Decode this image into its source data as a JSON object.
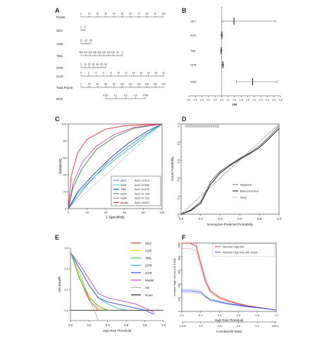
{
  "panel_labels": [
    "A",
    "B",
    "C",
    "D",
    "E",
    "F"
  ],
  "chart_data": [
    {
      "panel": "A",
      "type": "table",
      "rows": [
        {
          "label": "Points",
          "ticks": [
            "0",
            "10",
            "20",
            "30",
            "40",
            "50",
            "60",
            "70",
            "80",
            "90",
            "100"
          ]
        },
        {
          "label": "SEX",
          "ticks": [
            "1",
            "0"
          ]
        },
        {
          "label": "AGE",
          "ticks": [
            "15",
            "30",
            "60"
          ]
        },
        {
          "label": "TBIL",
          "ticks": [
            "450",
            "400",
            "350",
            "300",
            "250",
            "200",
            "150",
            "100",
            "50",
            "0"
          ]
        },
        {
          "label": "GPR",
          "ticks": [
            "0",
            "10",
            "20",
            "30",
            "40",
            "50",
            "60"
          ]
        },
        {
          "label": "GAR",
          "ticks": [
            "0",
            "2",
            "4",
            "6",
            "8",
            "10",
            "12",
            "14",
            "16",
            "18",
            "20",
            "22"
          ]
        },
        {
          "label": "Total Points",
          "ticks": [
            "0",
            "20",
            "40",
            "60",
            "80",
            "100",
            "120",
            "140",
            "160",
            "180",
            "200"
          ]
        },
        {
          "label": "Risk",
          "ticks": [
            "0.001",
            "0.1",
            "0.5",
            "0.9",
            "0.999"
          ]
        }
      ]
    },
    {
      "panel": "B",
      "type": "scatter",
      "xlabel": "OR",
      "xlim": [
        0,
        2.8
      ],
      "xticks": [
        "0.0",
        "0.2",
        "0.4",
        "0.6",
        "0.8",
        "1.0",
        "1.2",
        "1.4",
        "1.6",
        "1.8",
        "2.0",
        "2.2",
        "2.4",
        "2.6",
        "2.8"
      ],
      "rows": [
        {
          "label": "SEX",
          "or": 1.38,
          "lo": 1.02,
          "hi": 2.65
        },
        {
          "label": "AGE",
          "or": 1.01,
          "lo": 0.98,
          "hi": 1.03
        },
        {
          "label": "TBIL",
          "or": 0.99,
          "lo": 0.97,
          "hi": 1.01
        },
        {
          "label": "GPR",
          "or": 1.04,
          "lo": 1.01,
          "hi": 1.07
        },
        {
          "label": "GAR",
          "or": 1.95,
          "lo": 1.45,
          "hi": 2.7
        }
      ]
    },
    {
      "panel": "C",
      "type": "line",
      "xlabel": "1-Specificity",
      "ylabel": "Sensitivity",
      "xlim": [
        0,
        100
      ],
      "ylim": [
        0,
        100
      ],
      "xticks": [
        "0",
        "20",
        "40",
        "60",
        "80",
        "100"
      ],
      "yticks": [
        "0",
        "20",
        "40",
        "60",
        "80",
        "100"
      ],
      "series": [
        {
          "name": "SEX",
          "auc": "AUC=0.572",
          "color": "#5a7fd6",
          "x": [
            0,
            20,
            40,
            60,
            80,
            100
          ],
          "y": [
            0,
            28,
            52,
            70,
            86,
            100
          ]
        },
        {
          "name": "AGE",
          "auc": "AUC=0.596",
          "color": "#2bc4d6",
          "x": [
            0,
            10,
            30,
            50,
            70,
            85,
            100
          ],
          "y": [
            0,
            18,
            40,
            58,
            75,
            88,
            100
          ]
        },
        {
          "name": "TBIL",
          "auc": "AUC=0.575",
          "color": "#1a3fb5",
          "x": [
            0,
            10,
            25,
            45,
            65,
            85,
            100
          ],
          "y": [
            0,
            20,
            38,
            60,
            78,
            92,
            100
          ]
        },
        {
          "name": "GPR",
          "auc": "AUC=0.735",
          "color": "#2e8b3a",
          "x": [
            0,
            5,
            15,
            30,
            50,
            70,
            100
          ],
          "y": [
            0,
            25,
            48,
            70,
            85,
            95,
            100
          ]
        },
        {
          "name": "GAR",
          "auc": "AUC=0.753",
          "color": "#e040b8",
          "x": [
            0,
            5,
            15,
            30,
            50,
            70,
            100
          ],
          "y": [
            0,
            30,
            55,
            74,
            88,
            96,
            100
          ]
        },
        {
          "name": "Model",
          "auc": "AUC=0.837",
          "color": "#e53030",
          "x": [
            0,
            3,
            10,
            20,
            40,
            60,
            100
          ],
          "y": [
            0,
            38,
            66,
            82,
            94,
            98,
            100
          ]
        }
      ]
    },
    {
      "panel": "D",
      "type": "line",
      "xlabel": "Nomogram-Predicted Probability",
      "ylabel": "Actual Probability",
      "xlim": [
        0,
        1.0
      ],
      "ylim": [
        0,
        1.0
      ],
      "xticks": [
        "0.0",
        "0.2",
        "0.4",
        "0.6",
        "0.8",
        "1.0"
      ],
      "yticks": [
        "0.0",
        "0.2",
        "0.4",
        "0.6",
        "0.8",
        "1.0"
      ],
      "legend": [
        "Apparent",
        "Bias-corrected",
        "Ideal"
      ],
      "series": [
        {
          "name": "Apparent",
          "x": [
            0.0,
            0.1,
            0.2,
            0.3,
            0.4,
            0.5,
            0.6,
            0.7,
            0.8,
            0.9,
            1.0
          ],
          "y": [
            0.0,
            0.05,
            0.14,
            0.36,
            0.48,
            0.55,
            0.62,
            0.68,
            0.76,
            0.86,
            0.98
          ]
        },
        {
          "name": "Bias-corrected",
          "x": [
            0.0,
            0.1,
            0.2,
            0.3,
            0.4,
            0.5,
            0.6,
            0.7,
            0.8,
            0.9,
            1.0
          ],
          "y": [
            0.0,
            0.04,
            0.12,
            0.33,
            0.46,
            0.54,
            0.61,
            0.67,
            0.74,
            0.84,
            0.95
          ]
        },
        {
          "name": "Ideal",
          "x": [
            0.0,
            1.0
          ],
          "y": [
            0.0,
            1.0
          ]
        }
      ]
    },
    {
      "panel": "E",
      "type": "line",
      "xlabel": "High Risk Threshold",
      "ylabel": "Net Benefit",
      "xlim": [
        0,
        1.0
      ],
      "ylim": [
        -0.05,
        0.3
      ],
      "xticks": [
        "0.0",
        "0.2",
        "0.4",
        "0.6",
        "0.8",
        "1.0"
      ],
      "yticks": [
        "0.0",
        "0.1",
        "0.2",
        "0.3"
      ],
      "series": [
        {
          "name": "SEX",
          "color": "#e53030",
          "x": [
            0.0,
            0.1,
            0.2,
            0.3
          ],
          "y": [
            0.28,
            0.15,
            0.05,
            0.0
          ]
        },
        {
          "name": "AGE",
          "color": "#e6d21e",
          "x": [
            0.0,
            0.1,
            0.2,
            0.3,
            0.4
          ],
          "y": [
            0.28,
            0.16,
            0.07,
            0.01,
            0.0
          ]
        },
        {
          "name": "TBIL",
          "color": "#3fcf3f",
          "x": [
            0.0,
            0.1,
            0.2,
            0.3,
            0.4
          ],
          "y": [
            0.28,
            0.15,
            0.06,
            0.02,
            0.0
          ]
        },
        {
          "name": "GPR",
          "color": "#2bc4d6",
          "x": [
            0.0,
            0.1,
            0.2,
            0.3,
            0.4,
            0.5,
            0.6
          ],
          "y": [
            0.28,
            0.2,
            0.12,
            0.06,
            0.03,
            0.01,
            0.0
          ]
        },
        {
          "name": "GAR",
          "color": "#3050e0",
          "x": [
            0.0,
            0.1,
            0.2,
            0.3,
            0.4,
            0.5,
            0.6,
            0.7,
            0.8,
            0.9
          ],
          "y": [
            0.28,
            0.2,
            0.12,
            0.06,
            0.04,
            0.03,
            0.02,
            0.01,
            0.0,
            -0.02
          ]
        },
        {
          "name": "Model",
          "color": "#c040d0",
          "x": [
            0.0,
            0.1,
            0.2,
            0.3,
            0.4,
            0.5,
            0.6,
            0.7,
            0.8,
            0.9
          ],
          "y": [
            0.28,
            0.22,
            0.15,
            0.08,
            0.06,
            0.05,
            0.04,
            0.03,
            0.01,
            -0.01
          ]
        },
        {
          "name": "All",
          "color": "#aaaaaa",
          "x": [
            0.0,
            0.1,
            0.2,
            0.3
          ],
          "y": [
            0.28,
            0.18,
            0.06,
            -0.05
          ]
        },
        {
          "name": "None",
          "color": "#222222",
          "x": [
            0.0,
            1.0
          ],
          "y": [
            0.0,
            0.0
          ]
        }
      ]
    },
    {
      "panel": "F",
      "type": "line",
      "xlabel": "High Risk Threshold",
      "ylabel": "Number high risk (out of 1000)",
      "xlabel2": "Cost:Benefit Ratio",
      "xlim": [
        0,
        1.0
      ],
      "ylim": [
        0,
        1000
      ],
      "xticks": [
        "0.0",
        "0.2",
        "0.4",
        "0.6",
        "0.8",
        "1.0"
      ],
      "yticks": [
        "0",
        "200",
        "400",
        "600",
        "800",
        "1000"
      ],
      "cost_benefit_ticks": [
        "1:100",
        "1:4",
        "2:3",
        "3:2",
        "4:1",
        "100:1"
      ],
      "series": [
        {
          "name": "Number high risk",
          "color": "#e53030",
          "x": [
            0.0,
            0.08,
            0.15,
            0.2,
            0.25,
            0.3,
            0.4,
            0.5,
            0.6,
            0.7,
            0.8,
            0.9,
            1.0
          ],
          "y": [
            1000,
            1000,
            960,
            700,
            450,
            300,
            200,
            150,
            110,
            80,
            60,
            40,
            20
          ]
        },
        {
          "name": "Number high risk with event",
          "color": "#3050e0",
          "x": [
            0.0,
            0.1,
            0.2,
            0.25,
            0.3,
            0.4,
            0.5,
            0.6,
            0.7,
            0.8,
            0.9,
            1.0
          ],
          "y": [
            300,
            300,
            280,
            220,
            170,
            140,
            110,
            90,
            70,
            55,
            40,
            20
          ]
        }
      ]
    }
  ]
}
